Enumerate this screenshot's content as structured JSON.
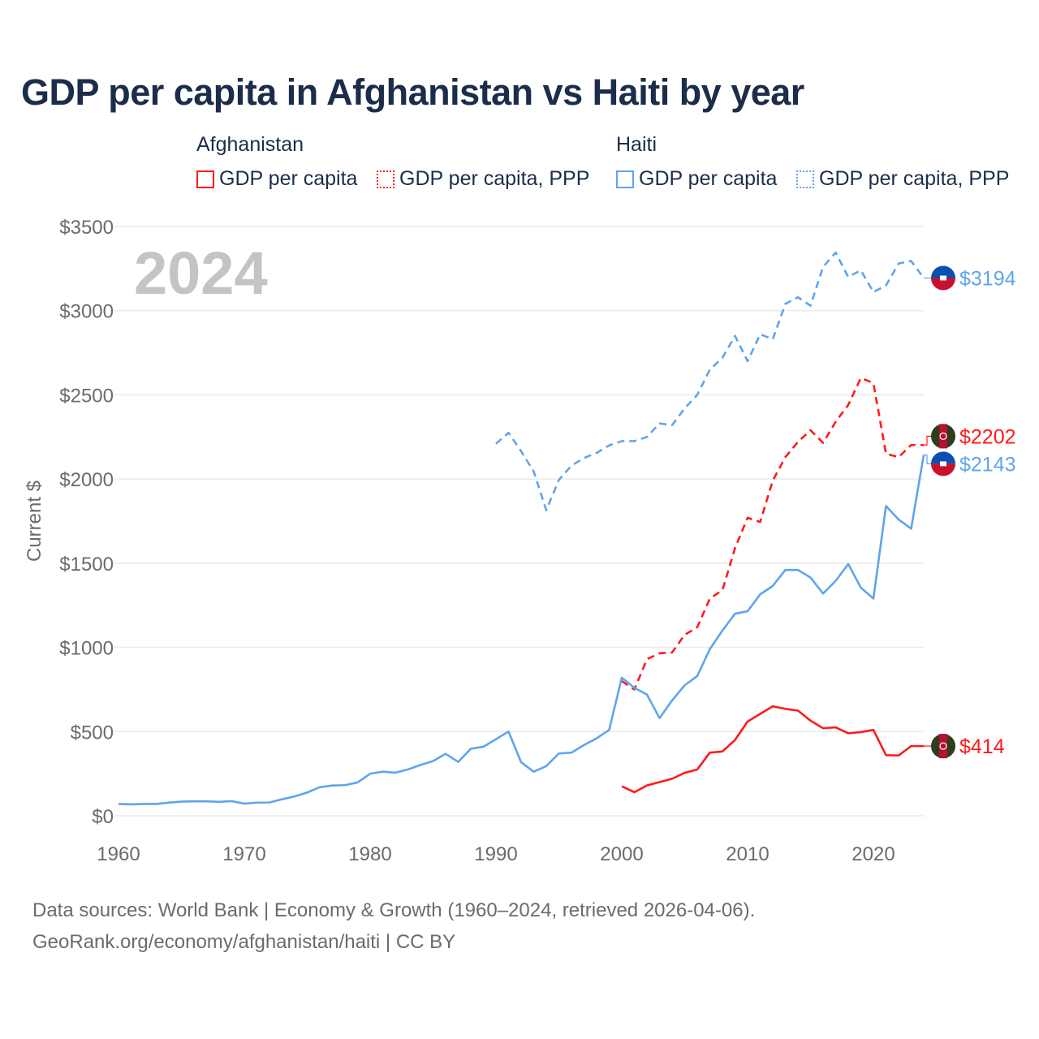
{
  "chart_data": {
    "type": "line",
    "title": "GDP per capita in Afghanistan vs Haiti by year",
    "ylabel": "Current $",
    "xlabel": "",
    "year_watermark": "2024",
    "xlim": [
      1960,
      2024
    ],
    "ylim": [
      0,
      3500
    ],
    "x_ticks": [
      1960,
      1970,
      1980,
      1990,
      2000,
      2010,
      2020
    ],
    "y_ticks": [
      0,
      500,
      1000,
      1500,
      2000,
      2500,
      3000,
      3500
    ],
    "y_tick_labels": [
      "$0",
      "$500",
      "$1000",
      "$1500",
      "$2000",
      "$2500",
      "$3000",
      "$3500"
    ],
    "grid": true,
    "legend": {
      "placement": "top",
      "groups": [
        {
          "label": "Afghanistan",
          "items": [
            "GDP per capita",
            "GDP per capita, PPP"
          ]
        },
        {
          "label": "Haiti",
          "items": [
            "GDP per capita",
            "GDP per capita, PPP"
          ]
        }
      ]
    },
    "colors": {
      "afghanistan": "#ff1a1a",
      "haiti": "#5fa5eb"
    },
    "series": [
      {
        "name": "Afghanistan GDP per capita",
        "country": "afghanistan",
        "dashed": false,
        "end_label": "$414",
        "start_year": 2000,
        "values": [
          175,
          140,
          180,
          200,
          220,
          255,
          275,
          375,
          382,
          450,
          560,
          605,
          650,
          635,
          625,
          565,
          520,
          525,
          490,
          497,
          510,
          360,
          358,
          414,
          414
        ]
      },
      {
        "name": "Afghanistan GDP per capita, PPP",
        "country": "afghanistan",
        "dashed": true,
        "end_label": "$2202",
        "start_year": 2000,
        "values": [
          800,
          750,
          930,
          965,
          970,
          1075,
          1120,
          1290,
          1340,
          1590,
          1770,
          1745,
          1990,
          2130,
          2220,
          2290,
          2215,
          2340,
          2440,
          2600,
          2570,
          2150,
          2130,
          2202,
          2202
        ]
      },
      {
        "name": "Haiti GDP per capita",
        "country": "haiti",
        "dashed": false,
        "end_label": "$2143",
        "start_year": 1960,
        "values": [
          70,
          68,
          70,
          70,
          78,
          84,
          86,
          86,
          83,
          87,
          72,
          78,
          79,
          98,
          115,
          138,
          170,
          180,
          182,
          198,
          250,
          262,
          256,
          275,
          302,
          325,
          368,
          320,
          398,
          410,
          455,
          500,
          318,
          262,
          295,
          370,
          375,
          420,
          460,
          510,
          820,
          760,
          720,
          580,
          685,
          775,
          830,
          990,
          1100,
          1200,
          1215,
          1315,
          1365,
          1460,
          1460,
          1415,
          1320,
          1395,
          1495,
          1355,
          1290,
          1840,
          1760,
          1705,
          2143
        ]
      },
      {
        "name": "Haiti GDP per capita, PPP",
        "country": "haiti",
        "dashed": true,
        "end_label": "$3194",
        "start_year": 1990,
        "values": [
          2210,
          2275,
          2165,
          2045,
          1815,
          1995,
          2080,
          2125,
          2155,
          2200,
          2225,
          2225,
          2250,
          2330,
          2320,
          2420,
          2500,
          2650,
          2720,
          2850,
          2700,
          2860,
          2830,
          3040,
          3080,
          3030,
          3260,
          3345,
          3200,
          3240,
          3110,
          3150,
          3280,
          3295,
          3194
        ]
      }
    ]
  },
  "footer": {
    "line1": "Data sources: World Bank | Economy & Growth (1960–2024, retrieved 2026-04-06).",
    "line2": "GeoRank.org/economy/afghanistan/haiti | CC BY"
  }
}
